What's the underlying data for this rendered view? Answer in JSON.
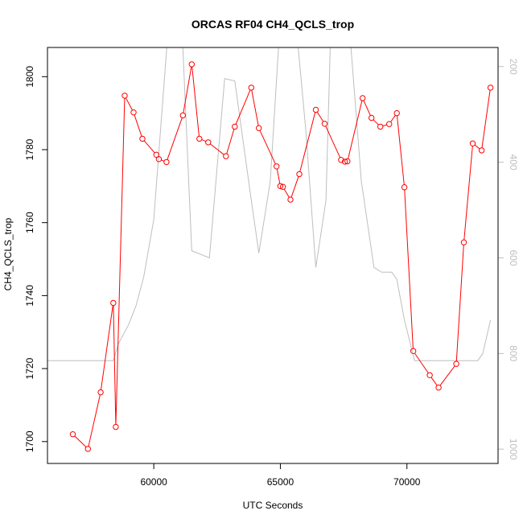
{
  "chart_data": {
    "type": "line",
    "title": "ORCAS RF04 CH4_QCLS_trop",
    "xlabel": "UTC Seconds",
    "ylabel": "CH4_QCLS_trop",
    "xlim": [
      55800,
      73600
    ],
    "ylim": [
      1694,
      1808
    ],
    "x_ticks": [
      "60000",
      "65000",
      "70000"
    ],
    "x_tick_values": [
      60000,
      65000,
      70000
    ],
    "y_ticks": [
      "1700",
      "1720",
      "1740",
      "1760",
      "1780",
      "1800"
    ],
    "y_tick_values": [
      1700,
      1720,
      1740,
      1760,
      1780,
      1800
    ],
    "right_axis": {
      "reversed": true,
      "lim": [
        160,
        1030
      ],
      "ticks": [
        "200",
        "400",
        "600",
        "800",
        "1000"
      ],
      "tick_values": [
        200,
        400,
        600,
        800,
        1000
      ]
    },
    "colors": {
      "series": "#ff0000",
      "secondary": "#bebebe",
      "axis": "#000000"
    },
    "series": [
      {
        "style": "line-with-open-circles",
        "axis": "left",
        "x": [
          56800,
          57400,
          57900,
          58400,
          58500,
          58850,
          59200,
          59550,
          60100,
          60200,
          60500,
          61150,
          61500,
          61800,
          62150,
          62850,
          63200,
          63850,
          64150,
          64850,
          65000,
          65100,
          65400,
          65750,
          66400,
          66750,
          67400,
          67550,
          67650,
          68250,
          68600,
          68950,
          69300,
          69600,
          69900,
          70250,
          70900,
          71250,
          71950,
          72250,
          72600,
          72950,
          73300
        ],
        "y": [
          1702,
          1698,
          1713.5,
          1738,
          1704,
          1794.8,
          1790.2,
          1783,
          1778.6,
          1777.4,
          1776.6,
          1789.4,
          1803.4,
          1783,
          1782,
          1778.2,
          1786.3,
          1797,
          1785.9,
          1775.4,
          1770,
          1769.8,
          1766.3,
          1773.3,
          1790.9,
          1787.1,
          1777.2,
          1776.7,
          1776.8,
          1794.1,
          1788.7,
          1786.3,
          1787,
          1790,
          1769.7,
          1724.8,
          1718.2,
          1714.8,
          1721.3,
          1754.6,
          1781.7,
          1779.8,
          1797
        ]
      },
      {
        "style": "line",
        "axis": "right",
        "x": [
          55800,
          56800,
          58400,
          58600,
          59000,
          59300,
          59600,
          60000,
          60600,
          61000,
          61100,
          61500,
          62200,
          62800,
          63200,
          63800,
          64150,
          64600,
          65000,
          65600,
          66000,
          66400,
          66800,
          67000,
          67400,
          67700,
          68200,
          68700,
          69000,
          69400,
          69600,
          69900,
          70300,
          70600,
          71200,
          72000,
          72500,
          72800,
          73000,
          73300
        ],
        "y": [
          815,
          815,
          815,
          780,
          740,
          700,
          640,
          520,
          100,
          100,
          100,
          585,
          600,
          225,
          230,
          460,
          590,
          440,
          100,
          100,
          330,
          620,
          480,
          100,
          100,
          100,
          440,
          620,
          630,
          630,
          645,
          730,
          815,
          815,
          815,
          815,
          815,
          815,
          800,
          730
        ]
      }
    ]
  }
}
